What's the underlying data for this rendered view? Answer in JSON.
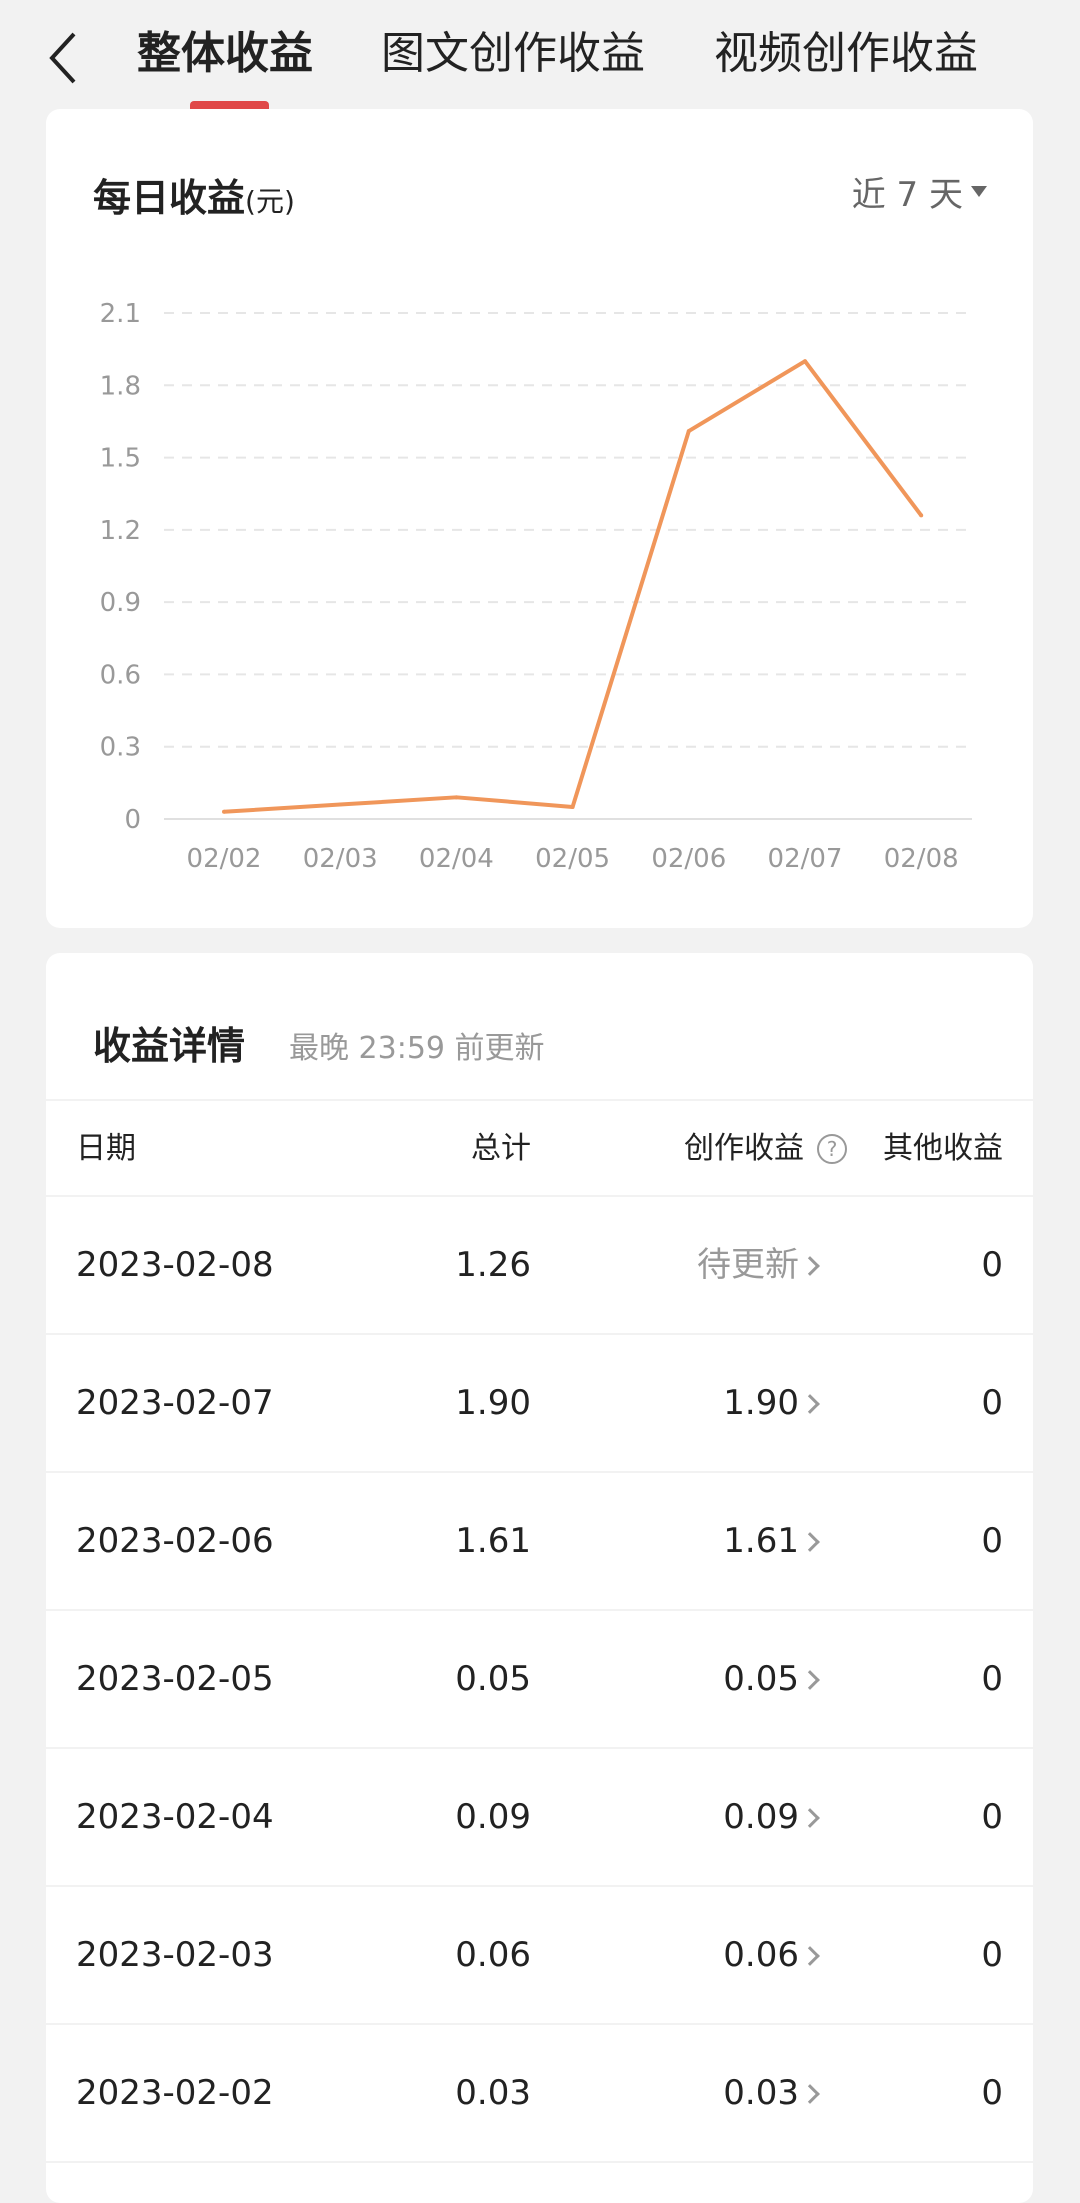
{
  "nav": {
    "back_icon": "chevron-left-icon",
    "tabs": [
      {
        "label": "整体收益",
        "active": true
      },
      {
        "label": "图文创作收益",
        "active": false
      },
      {
        "label": "视频创作收益",
        "active": false
      }
    ],
    "accent_color": "#e04848"
  },
  "daily": {
    "title": "每日收益",
    "unit": "(元)",
    "range_label": "近 7 天"
  },
  "chart_data": {
    "type": "line",
    "categories": [
      "02/02",
      "02/03",
      "02/04",
      "02/05",
      "02/06",
      "02/07",
      "02/08"
    ],
    "values": [
      0.03,
      0.06,
      0.09,
      0.05,
      1.61,
      1.9,
      1.26
    ],
    "yticks": [
      "0",
      "0.3",
      "0.6",
      "0.9",
      "1.2",
      "1.5",
      "1.8",
      "2.1"
    ],
    "ylim": [
      0,
      2.1
    ],
    "grid": true,
    "line_color": "#f0965a"
  },
  "details": {
    "title": "收益详情",
    "subtitle": "最晚 23:59 前更新",
    "headers": {
      "date": "日期",
      "total": "总计",
      "creation": "创作收益",
      "other": "其他收益"
    },
    "rows": [
      {
        "date": "2023-02-08",
        "total": "1.26",
        "creation": "待更新",
        "other": "0",
        "pending": true
      },
      {
        "date": "2023-02-07",
        "total": "1.90",
        "creation": "1.90",
        "other": "0"
      },
      {
        "date": "2023-02-06",
        "total": "1.61",
        "creation": "1.61",
        "other": "0"
      },
      {
        "date": "2023-02-05",
        "total": "0.05",
        "creation": "0.05",
        "other": "0"
      },
      {
        "date": "2023-02-04",
        "total": "0.09",
        "creation": "0.09",
        "other": "0"
      },
      {
        "date": "2023-02-03",
        "total": "0.06",
        "creation": "0.06",
        "other": "0"
      },
      {
        "date": "2023-02-02",
        "total": "0.03",
        "creation": "0.03",
        "other": "0"
      }
    ]
  }
}
